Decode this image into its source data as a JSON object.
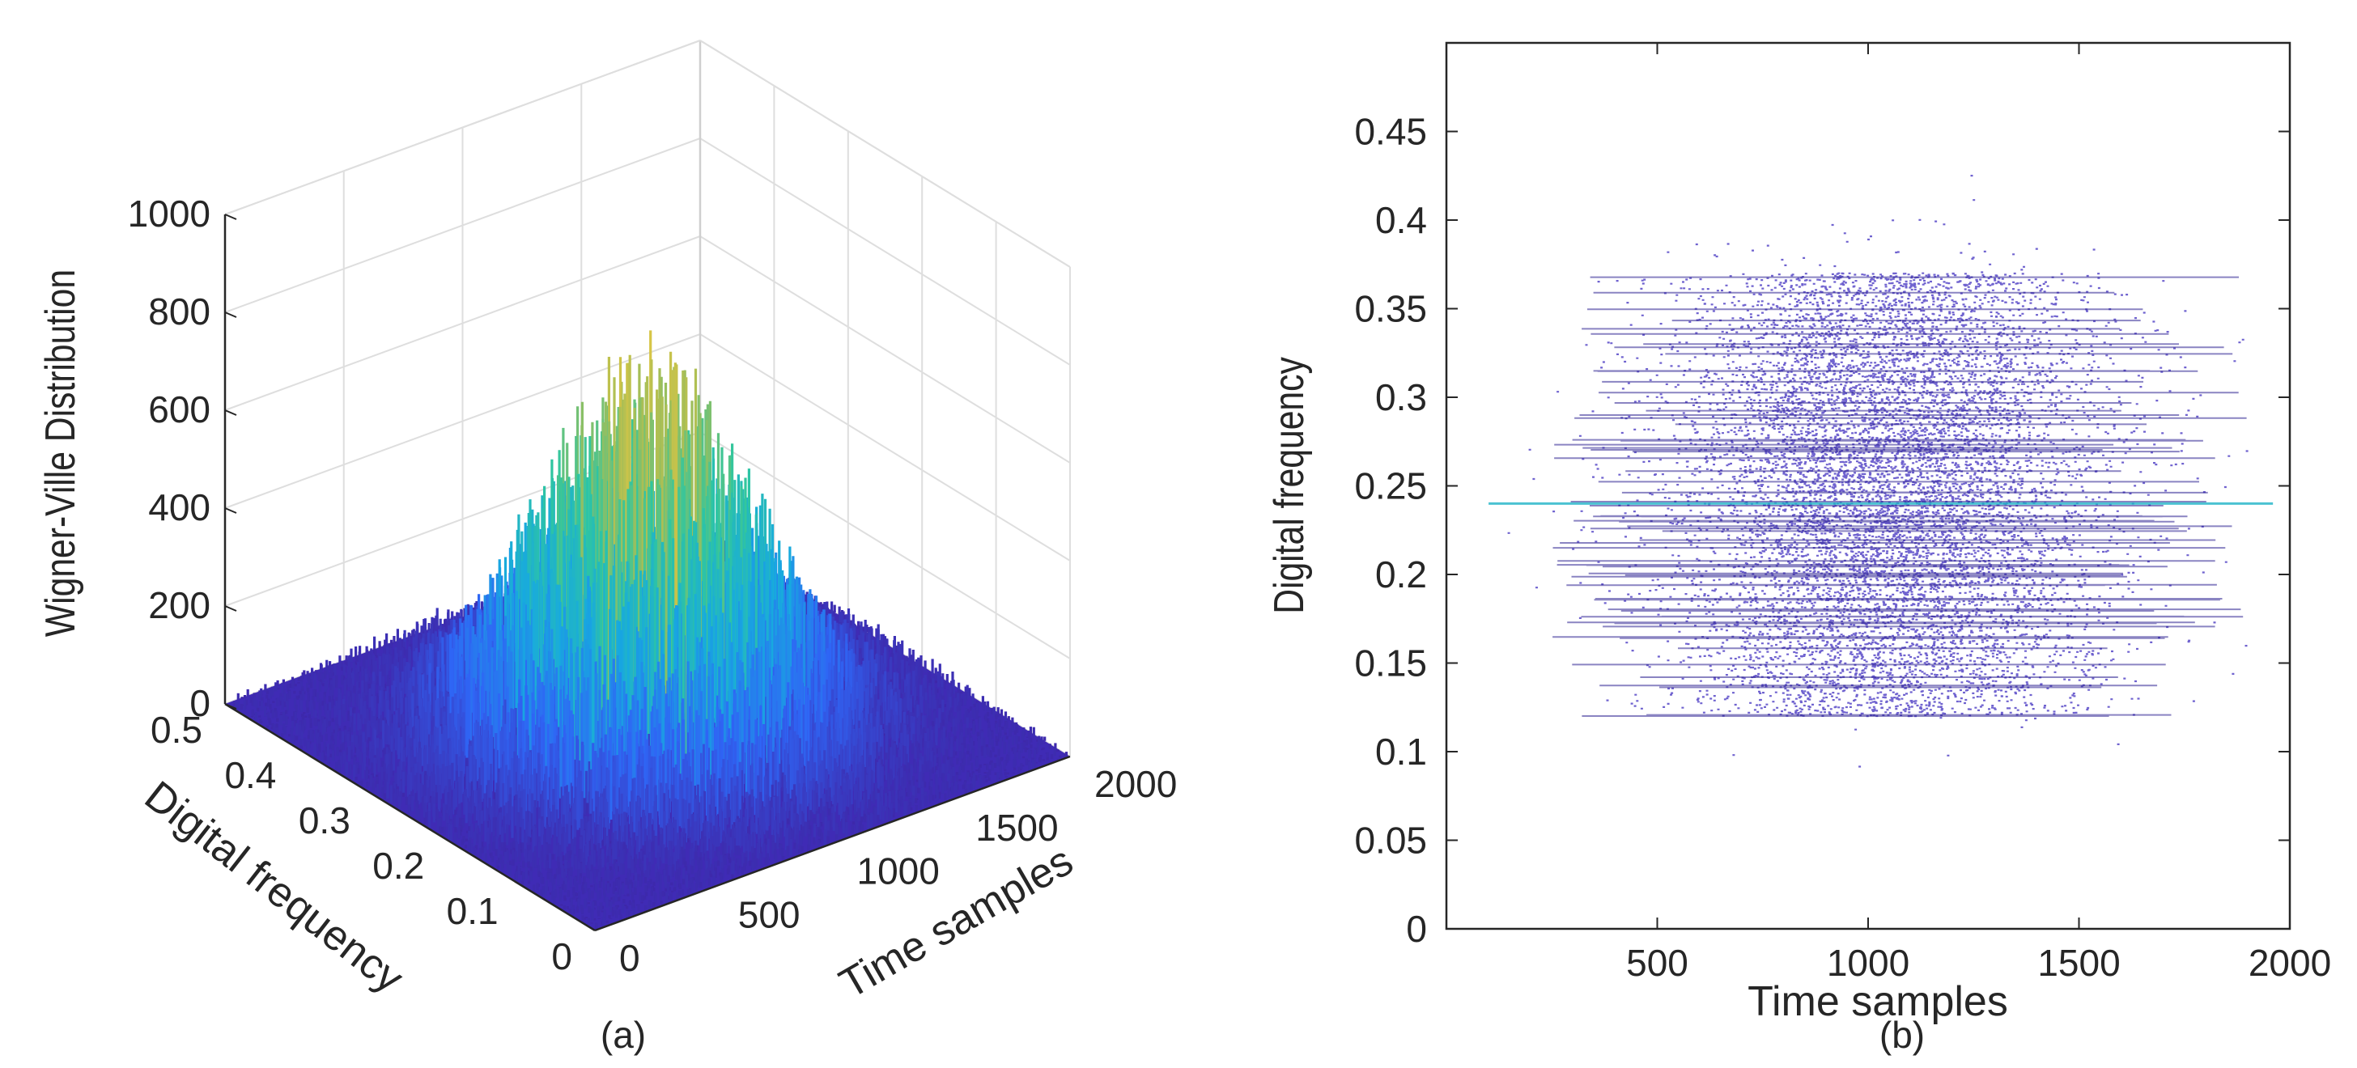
{
  "chart_data": [
    {
      "type": "surface3d",
      "caption": "(a)",
      "zlabel": "Wigner-Ville Distribution",
      "ylabel": "Digital frequency",
      "xlabel": "Time samples",
      "zticks": [
        "0",
        "200",
        "400",
        "600",
        "800",
        "1000"
      ],
      "yticks": [
        "0",
        "0.1",
        "0.2",
        "0.3",
        "0.4",
        "0.5"
      ],
      "xticks": [
        "0",
        "500",
        "1000",
        "1500",
        "2000"
      ],
      "xlim": [
        0,
        2000
      ],
      "ylim": [
        0,
        0.5
      ],
      "zlim": [
        0,
        1000
      ],
      "peak_value": 840,
      "peak_time": 1000,
      "peak_frequency": 0.25,
      "colormap": [
        "#3e26a8",
        "#2f65f5",
        "#17a9e0",
        "#2fc6a0",
        "#a4be57",
        "#f9c93a"
      ],
      "grid": true
    },
    {
      "type": "scatter",
      "caption": "(b)",
      "xlabel": "Time samples",
      "ylabel": "Digital frequency",
      "xticks": [
        "500",
        "1000",
        "1500",
        "2000"
      ],
      "yticks": [
        "0",
        "0.05",
        "0.1",
        "0.15",
        "0.2",
        "0.25",
        "0.3",
        "0.35",
        "0.4",
        "0.45"
      ],
      "xlim": [
        0,
        2000
      ],
      "ylim": [
        0,
        0.5
      ],
      "point_color": "#3f2dbf",
      "density_center": {
        "x": 1050,
        "y": 0.25
      },
      "dense_band_y": [
        0.12,
        0.37
      ],
      "highlight_line_y": 0.24,
      "highlight_color": "#1fb3c7",
      "grid": false
    }
  ]
}
